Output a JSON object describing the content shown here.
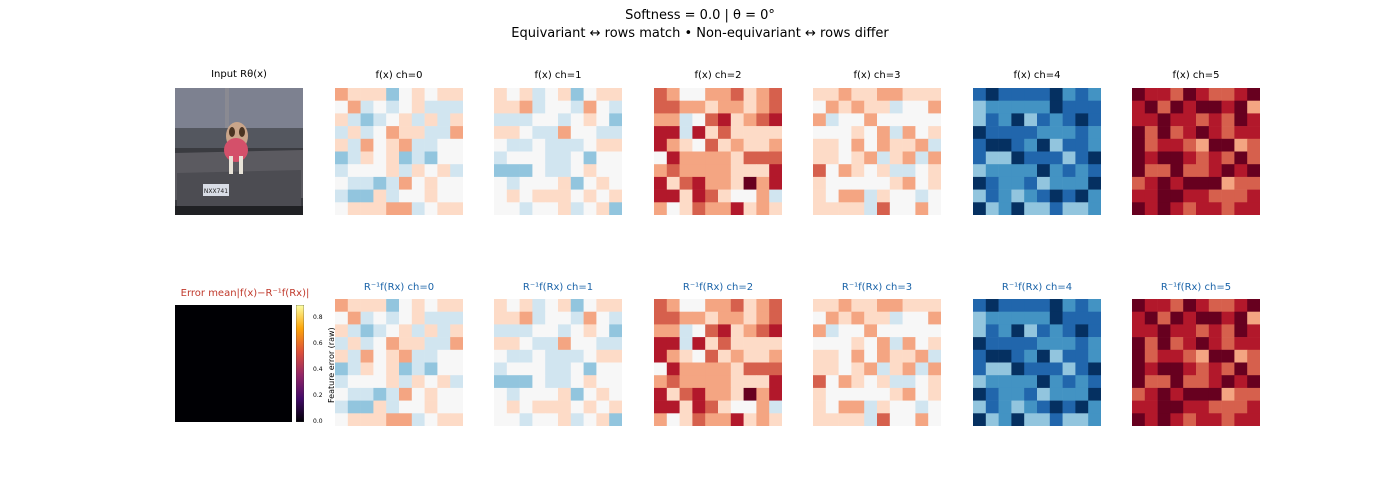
{
  "header": {
    "line1": "Softness = 0.0   |   θ = 0°",
    "line2": "Equivariant ↔ rows match   •   Non-equivariant ↔ rows differ"
  },
  "input_panel": {
    "title": "Input Rθ(x)",
    "plate_text": "NXX741"
  },
  "error_panel": {
    "title": "Error  mean|f(x)−R⁻¹f(Rx)|"
  },
  "colorbar": {
    "label": "Feature error (raw)",
    "ticks": [
      "0.0",
      "0.2",
      "0.4",
      "0.6",
      "0.8"
    ]
  },
  "colors": {
    "diverging": [
      "#053061",
      "#2166ac",
      "#4393c3",
      "#92c5de",
      "#d1e5f0",
      "#f7f7f7",
      "#fddbc7",
      "#f4a582",
      "#d6604d",
      "#b2182b",
      "#67001f"
    ],
    "error_fill": "#000004",
    "bottom_title": "#1a63a8",
    "error_title": "#c0392b"
  },
  "chart_data": {
    "type": "heatmap",
    "grid": [
      10,
      10
    ],
    "colormap": "RdBu_r",
    "row1_titles": [
      "f(x) ch=0",
      "f(x) ch=1",
      "f(x) ch=2",
      "f(x) ch=3",
      "f(x) ch=4",
      "f(x) ch=5"
    ],
    "row2_titles": [
      "R⁻¹f(Rx) ch=0",
      "R⁻¹f(Rx) ch=1",
      "R⁻¹f(Rx) ch=2",
      "R⁻¹f(Rx) ch=3",
      "R⁻¹f(Rx) ch=4",
      "R⁻¹f(Rx) ch=5"
    ],
    "channel_bias": [
      0.02,
      -0.05,
      0.35,
      0.12,
      -0.72,
      0.78
    ],
    "channel_spread": [
      0.22,
      0.22,
      0.3,
      0.22,
      0.2,
      0.2
    ],
    "error_colorbar_range": [
      0.0,
      0.9
    ],
    "error_value": 0.0
  }
}
